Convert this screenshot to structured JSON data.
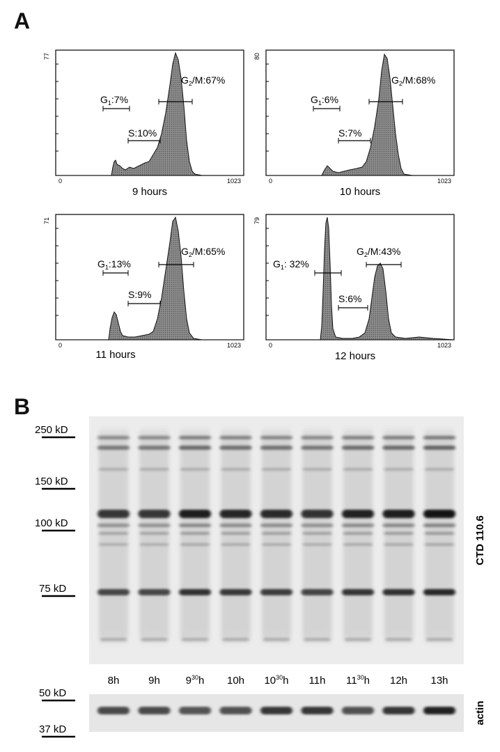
{
  "figure": {
    "panel_a_letter": "A",
    "panel_b_letter": "B"
  },
  "histograms": [
    {
      "time_label": "9 hours",
      "y_tick": "77",
      "x_min_tick": "0",
      "x_max_tick": "1023",
      "g1_label": "G",
      "g1_sub": "1",
      "g1_value": ":7%",
      "s_label": "S:10%",
      "g2m_label": "G",
      "g2m_sub": "2",
      "g2m_value": "/M:67%"
    },
    {
      "time_label": "10 hours",
      "y_tick": "80",
      "x_min_tick": "0",
      "x_max_tick": "1023",
      "g1_label": "G",
      "g1_sub": "1",
      "g1_value": ":6%",
      "s_label": "S:7%",
      "g2m_label": "G",
      "g2m_sub": "2",
      "g2m_value": "/M:68%"
    },
    {
      "time_label": "11 hours",
      "y_tick": "71",
      "x_min_tick": "0",
      "x_max_tick": "1023",
      "g1_label": "G",
      "g1_sub": "1",
      "g1_value": ":13%",
      "s_label": "S:9%",
      "g2m_label": "G",
      "g2m_sub": "2",
      "g2m_value": "/M:65%"
    },
    {
      "time_label": "12 hours",
      "y_tick": "79",
      "x_min_tick": "0",
      "x_max_tick": "1023",
      "g1_label": "G",
      "g1_sub": "1",
      "g1_value": ": 32%",
      "s_label": "S:6%",
      "g2m_label": "G",
      "g2m_sub": "2",
      "g2m_value": "/M:43%"
    }
  ],
  "blot": {
    "mw_markers": [
      "250 kD",
      "150 kD",
      "100 kD",
      "75 kD"
    ],
    "actin_markers": [
      "50 kD",
      "37 kD"
    ],
    "antibody_label": "CTD 110.6",
    "actin_label": "actin",
    "lanes": [
      {
        "main": "8h",
        "sup": "",
        "tail": ""
      },
      {
        "main": "9h",
        "sup": "",
        "tail": ""
      },
      {
        "main": "9",
        "sup": "30",
        "tail": "h"
      },
      {
        "main": "10h",
        "sup": "",
        "tail": ""
      },
      {
        "main": "10",
        "sup": "30",
        "tail": "h"
      },
      {
        "main": "11h",
        "sup": "",
        "tail": ""
      },
      {
        "main": "11",
        "sup": "30",
        "tail": "h"
      },
      {
        "main": "12h",
        "sup": "",
        "tail": ""
      },
      {
        "main": "13h",
        "sup": "",
        "tail": ""
      }
    ]
  }
}
